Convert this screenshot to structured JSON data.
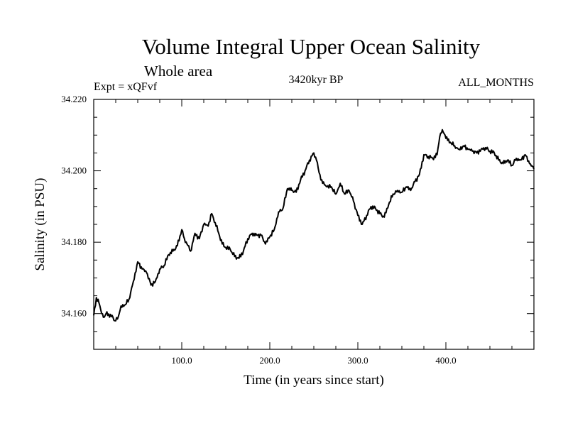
{
  "chart_data": {
    "type": "line",
    "title": "Volume Integral Upper Ocean Salinity",
    "subtitle": "Whole area",
    "experiment_label": "Expt = xQFvf",
    "period_label": "3420kyr BP",
    "months_label": "ALL_MONTHS",
    "xlabel": "Time (in years since start)",
    "ylabel": "Salinity (in PSU)",
    "xlim": [
      0,
      500
    ],
    "ylim": [
      34.15,
      34.22
    ],
    "x_ticks": [
      100,
      200,
      300,
      400
    ],
    "x_tick_labels": [
      "100.0",
      "200.0",
      "300.0",
      "400.0"
    ],
    "y_ticks": [
      34.16,
      34.18,
      34.2,
      34.22
    ],
    "y_tick_labels": [
      "34.160",
      "34.180",
      "34.200",
      "34.220"
    ],
    "grid": false,
    "series": [
      {
        "name": "Salinity",
        "x": [
          0,
          3,
          6,
          9,
          12,
          15,
          18,
          21,
          24,
          27,
          30,
          33,
          36,
          40,
          45,
          50,
          55,
          60,
          65,
          70,
          75,
          80,
          85,
          90,
          95,
          100,
          103,
          106,
          110,
          115,
          120,
          125,
          130,
          134,
          138,
          142,
          146,
          150,
          155,
          160,
          165,
          170,
          175,
          180,
          185,
          190,
          195,
          200,
          205,
          210,
          215,
          220,
          225,
          230,
          235,
          240,
          245,
          250,
          253,
          256,
          260,
          265,
          270,
          275,
          280,
          285,
          290,
          295,
          300,
          305,
          310,
          315,
          320,
          325,
          330,
          335,
          340,
          345,
          350,
          355,
          360,
          365,
          370,
          375,
          380,
          385,
          390,
          393,
          396,
          399,
          402,
          405,
          410,
          415,
          420,
          425,
          430,
          435,
          440,
          445,
          450,
          455,
          460,
          465,
          470,
          475,
          480,
          485,
          490,
          495,
          500
        ],
        "values": [
          34.1595,
          34.1645,
          34.163,
          34.16,
          34.159,
          34.1605,
          34.159,
          34.1595,
          34.158,
          34.1585,
          34.161,
          34.1625,
          34.1625,
          34.164,
          34.169,
          34.1745,
          34.1725,
          34.1715,
          34.168,
          34.169,
          34.1725,
          34.1735,
          34.1765,
          34.1775,
          34.179,
          34.1835,
          34.181,
          34.1795,
          34.1775,
          34.1825,
          34.181,
          34.185,
          34.1845,
          34.188,
          34.1855,
          34.1825,
          34.1795,
          34.1785,
          34.178,
          34.176,
          34.1755,
          34.1775,
          34.181,
          34.1825,
          34.182,
          34.182,
          34.1795,
          34.1815,
          34.1835,
          34.1885,
          34.1895,
          34.195,
          34.1945,
          34.194,
          34.1975,
          34.2,
          34.203,
          34.205,
          34.203,
          34.1995,
          34.1965,
          34.1955,
          34.1955,
          34.1935,
          34.1965,
          34.1935,
          34.1945,
          34.1915,
          34.1875,
          34.185,
          34.1875,
          34.19,
          34.1895,
          34.188,
          34.187,
          34.1905,
          34.1935,
          34.1945,
          34.194,
          34.1955,
          34.1945,
          34.197,
          34.199,
          34.2045,
          34.204,
          34.2035,
          34.2045,
          34.2095,
          34.2115,
          34.21,
          34.2085,
          34.208,
          34.207,
          34.206,
          34.207,
          34.206,
          34.2055,
          34.205,
          34.206,
          34.2065,
          34.2055,
          34.205,
          34.203,
          34.202,
          34.203,
          34.2015,
          34.2035,
          34.203,
          34.2045,
          34.202,
          34.2005
        ]
      }
    ]
  }
}
